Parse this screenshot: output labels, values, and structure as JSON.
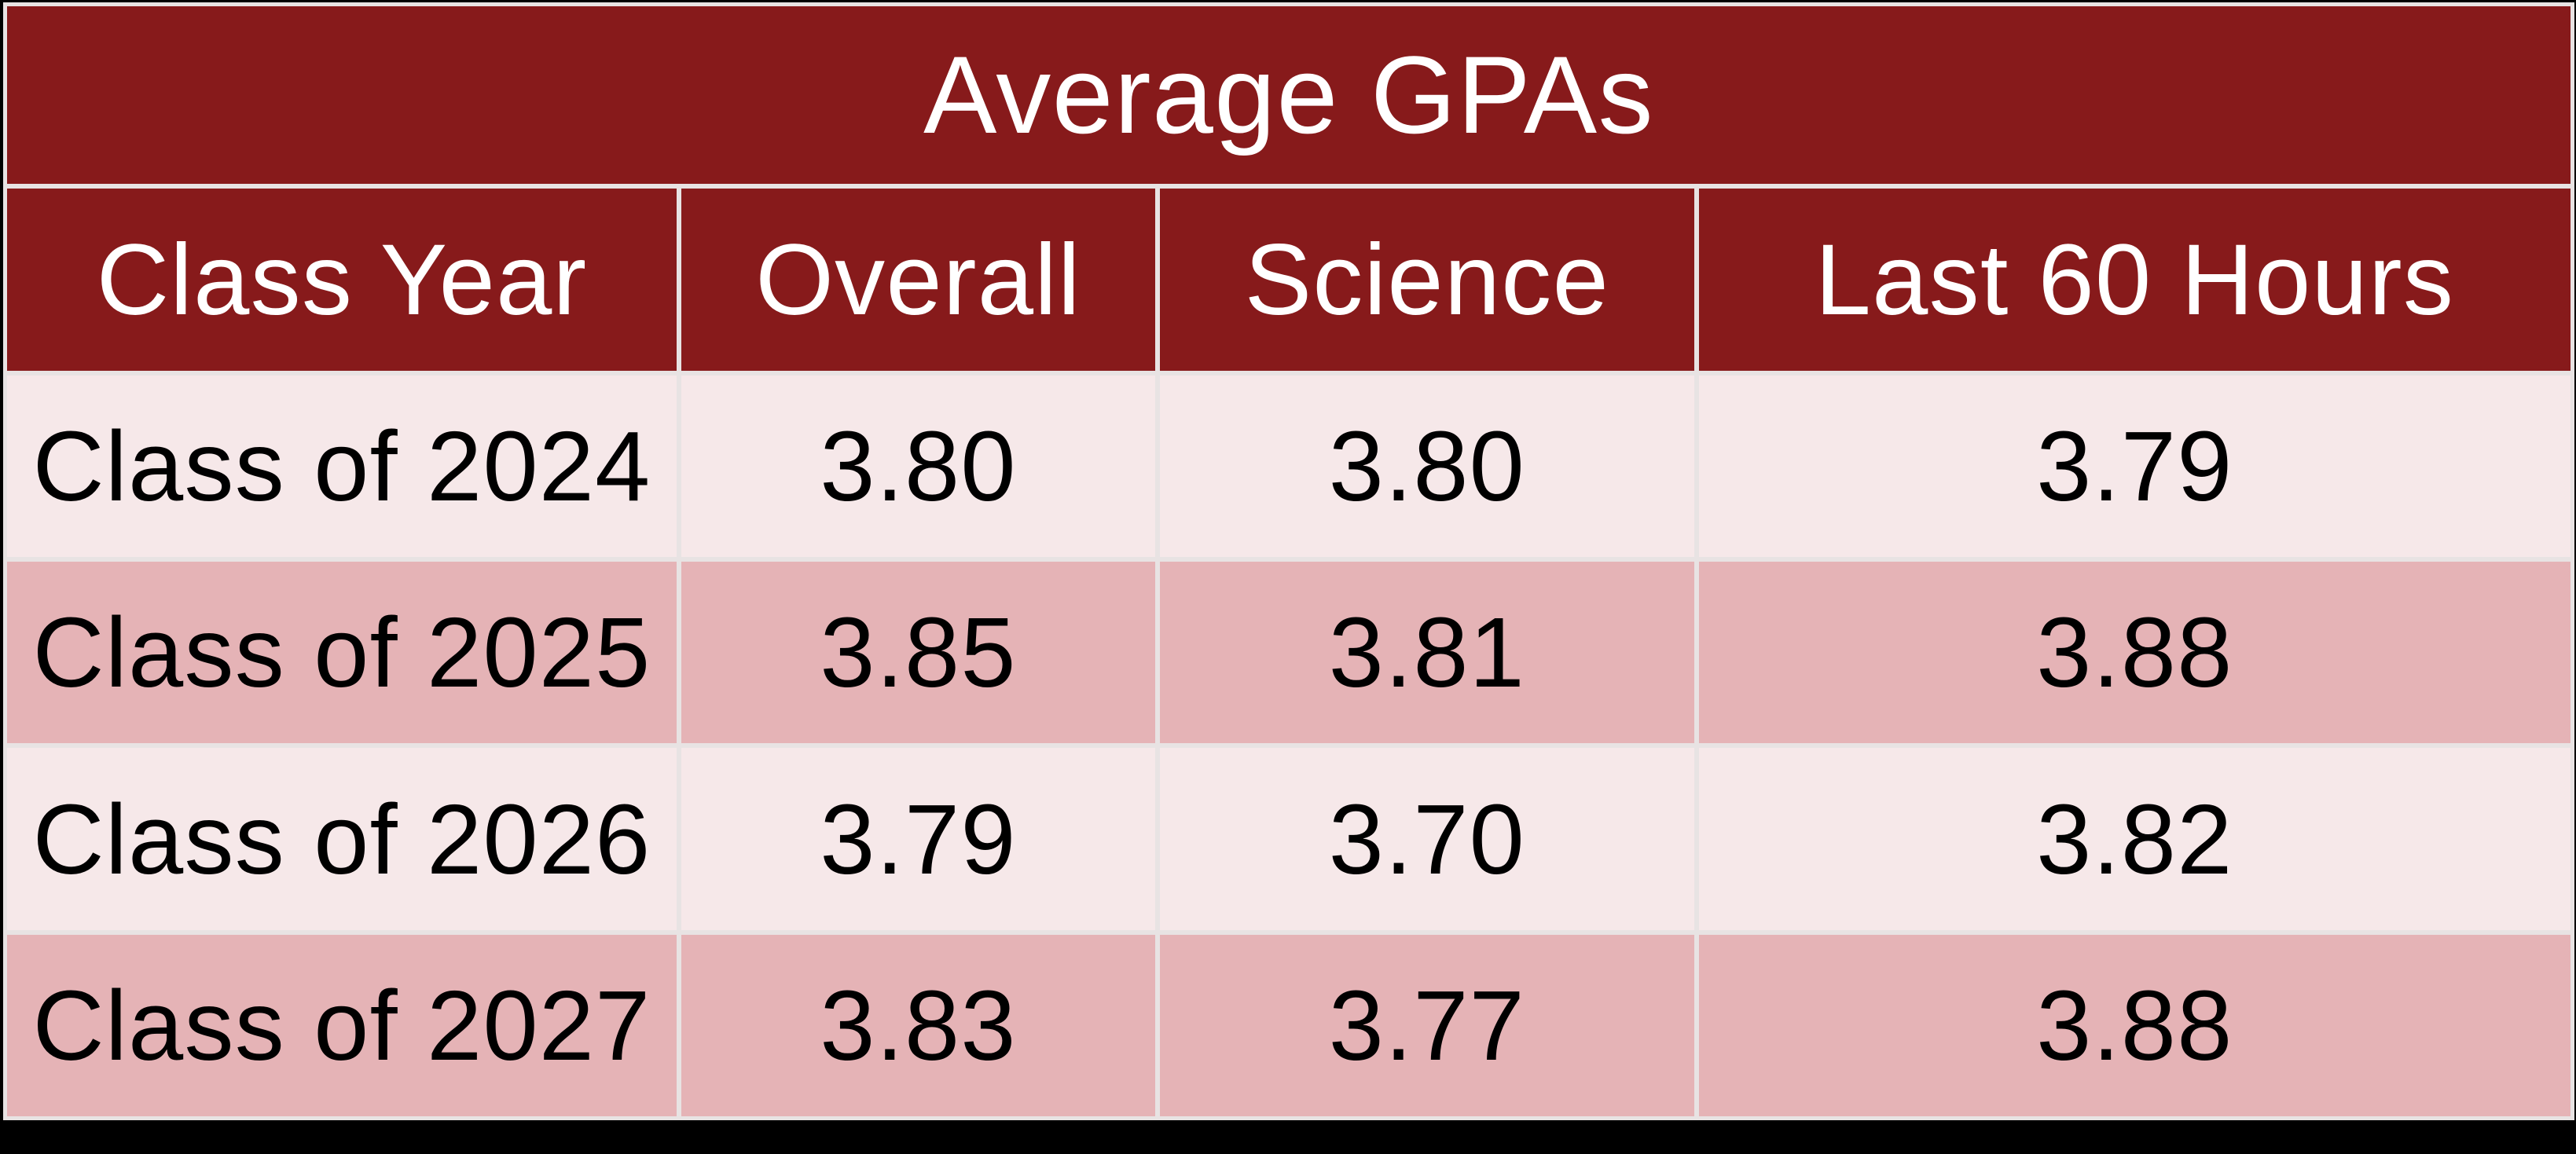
{
  "title": "Average GPAs",
  "colors": {
    "header_bg": "#871A1B",
    "row_light_bg": "#F6E8E9",
    "row_dark_bg": "#E5B3B6",
    "grid_line": "#E8E3E3",
    "header_text": "#FFFFFF",
    "body_text": "#000000",
    "page_bg": "#000000"
  },
  "chart_data": {
    "type": "table",
    "title": "Average GPAs",
    "columns": [
      "Class Year",
      "Overall",
      "Science",
      "Last 60 Hours"
    ],
    "rows": [
      [
        "Class of 2024",
        "3.80",
        "3.80",
        "3.79"
      ],
      [
        "Class of 2025",
        "3.85",
        "3.81",
        "3.88"
      ],
      [
        "Class of 2026",
        "3.79",
        "3.70",
        "3.82"
      ],
      [
        "Class of 2027",
        "3.83",
        "3.77",
        "3.88"
      ]
    ]
  }
}
